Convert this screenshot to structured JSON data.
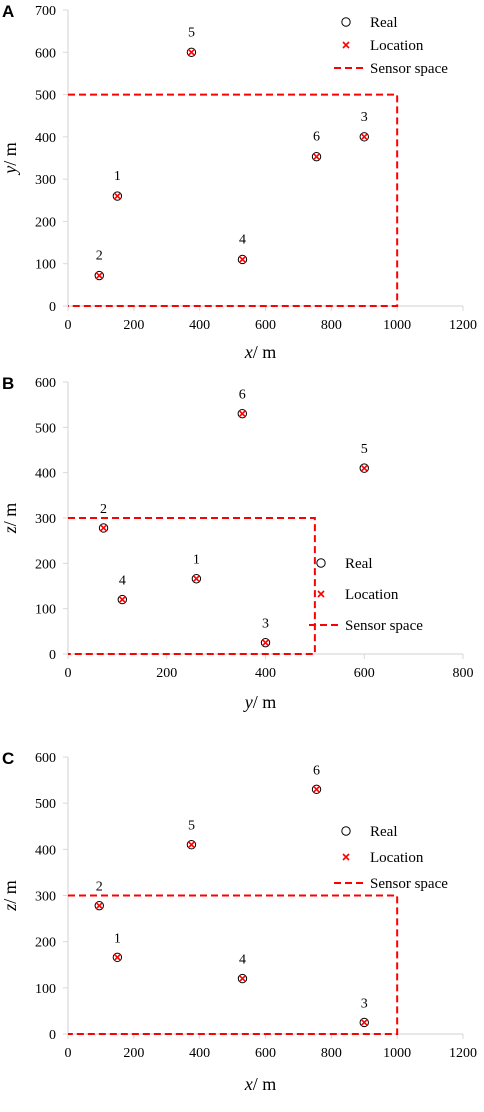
{
  "chart_data": [
    {
      "panel": "A",
      "type": "scatter",
      "xlabel": {
        "var": "x",
        "unit": "/ m"
      },
      "ylabel": {
        "var": "y",
        "unit": "/ m"
      },
      "xlim": [
        0,
        1200
      ],
      "ylim": [
        0,
        700
      ],
      "xticks": [
        0,
        200,
        400,
        600,
        800,
        1000,
        1200
      ],
      "yticks": [
        0,
        100,
        200,
        300,
        400,
        500,
        600,
        700
      ],
      "legend_position": "top-right",
      "legend": [
        "Real",
        "Location",
        "Sensor space"
      ],
      "points": [
        {
          "label": "1",
          "x": 150,
          "y": 260
        },
        {
          "label": "2",
          "x": 95,
          "y": 72
        },
        {
          "label": "3",
          "x": 900,
          "y": 400
        },
        {
          "label": "4",
          "x": 530,
          "y": 110
        },
        {
          "label": "5",
          "x": 375,
          "y": 600
        },
        {
          "label": "6",
          "x": 755,
          "y": 353
        }
      ],
      "sensor_space": {
        "x": [
          0,
          1000
        ],
        "y": [
          0,
          500
        ]
      }
    },
    {
      "panel": "B",
      "type": "scatter",
      "xlabel": {
        "var": "y",
        "unit": "/ m"
      },
      "ylabel": {
        "var": "z",
        "unit": "/ m"
      },
      "xlim": [
        0,
        800
      ],
      "ylim": [
        0,
        600
      ],
      "xticks": [
        0,
        200,
        400,
        600,
        800
      ],
      "yticks": [
        0,
        100,
        200,
        300,
        400,
        500,
        600
      ],
      "legend_position": "right",
      "legend": [
        "Real",
        "Location",
        "Sensor space"
      ],
      "points": [
        {
          "label": "1",
          "x": 260,
          "y": 166
        },
        {
          "label": "2",
          "x": 72,
          "y": 278
        },
        {
          "label": "3",
          "x": 400,
          "y": 25
        },
        {
          "label": "4",
          "x": 110,
          "y": 120
        },
        {
          "label": "5",
          "x": 600,
          "y": 410
        },
        {
          "label": "6",
          "x": 353,
          "y": 530
        }
      ],
      "sensor_space": {
        "x": [
          0,
          500
        ],
        "y": [
          0,
          300
        ]
      }
    },
    {
      "panel": "C",
      "type": "scatter",
      "xlabel": {
        "var": "x",
        "unit": "/ m"
      },
      "ylabel": {
        "var": "z",
        "unit": "/ m"
      },
      "xlim": [
        0,
        1200
      ],
      "ylim": [
        0,
        600
      ],
      "xticks": [
        0,
        200,
        400,
        600,
        800,
        1000,
        1200
      ],
      "yticks": [
        0,
        100,
        200,
        300,
        400,
        500,
        600
      ],
      "legend_position": "right",
      "legend": [
        "Real",
        "Location",
        "Sensor space"
      ],
      "points": [
        {
          "label": "1",
          "x": 150,
          "y": 166
        },
        {
          "label": "2",
          "x": 95,
          "y": 278
        },
        {
          "label": "3",
          "x": 900,
          "y": 25
        },
        {
          "label": "4",
          "x": 530,
          "y": 120
        },
        {
          "label": "5",
          "x": 375,
          "y": 410
        },
        {
          "label": "6",
          "x": 755,
          "y": 530
        }
      ],
      "sensor_space": {
        "x": [
          0,
          1000
        ],
        "y": [
          0,
          300
        ]
      }
    }
  ],
  "colors": {
    "real": "#000000",
    "location": "#ff0000",
    "sensor_space": "#ff0000",
    "axis": "#d9d9d9"
  }
}
